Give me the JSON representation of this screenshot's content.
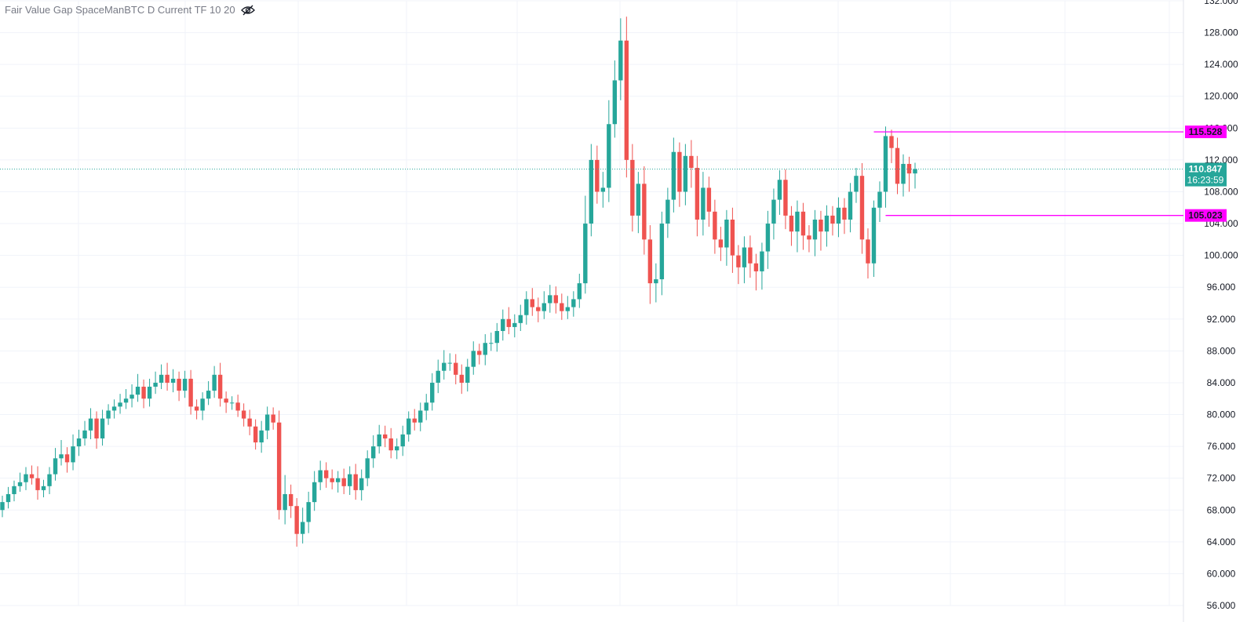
{
  "indicator": {
    "title": "Fair Value Gap SpaceManBTC D Current TF 10 20",
    "visibility_icon": "eye-off-icon"
  },
  "colors": {
    "up": "#26a69a",
    "down": "#ef5350",
    "level_line": "#ff00ff",
    "level_badge_bg": "#ff00ff",
    "price_badge_bg": "#26a69a",
    "grid": "#f0f3fa",
    "axis_text": "#131722"
  },
  "chart_data": {
    "type": "candlestick",
    "symbol_timeframe": "D",
    "ylim": [
      56000,
      132000
    ],
    "y_ticks": [
      "132.000",
      "128.000",
      "124.000",
      "120.000",
      "116.000",
      "112.000",
      "108.000",
      "104.000",
      "100.000",
      "96.000",
      "92.000",
      "88.000",
      "84.000",
      "80.000",
      "76.000",
      "72.000",
      "68.000",
      "64.000",
      "60.000",
      "56.000"
    ],
    "y_tick_values": [
      132000,
      128000,
      124000,
      120000,
      116000,
      112000,
      108000,
      104000,
      100000,
      96000,
      92000,
      88000,
      84000,
      80000,
      76000,
      72000,
      68000,
      64000,
      60000,
      56000
    ],
    "current_price": {
      "label": "110.847",
      "value": 110847,
      "countdown": "16:23:59"
    },
    "levels": [
      {
        "label": "115.528",
        "value": 115528,
        "start_index": 148
      },
      {
        "label": "105.023",
        "value": 105023,
        "start_index": 150
      }
    ],
    "closes": [
      69000,
      70000,
      71000,
      71500,
      72500,
      72000,
      70500,
      71000,
      72500,
      74500,
      75000,
      74000,
      76000,
      77000,
      78000,
      79500,
      77000,
      79500,
      80500,
      81000,
      81500,
      82000,
      82500,
      83500,
      82000,
      83500,
      84000,
      85000,
      84000,
      84500,
      83000,
      84500,
      81000,
      80500,
      82000,
      83000,
      85000,
      82000,
      81500,
      81500,
      80500,
      79500,
      78500,
      76500,
      78000,
      80000,
      79000,
      68000,
      70000,
      68500,
      65000,
      66500,
      69000,
      71500,
      73000,
      72000,
      71500,
      72000,
      71000,
      72500,
      70500,
      72000,
      74500,
      76000,
      77500,
      77000,
      75500,
      76000,
      77500,
      79500,
      79000,
      80500,
      81500,
      84000,
      85500,
      86500,
      86500,
      85000,
      84000,
      86000,
      88000,
      87500,
      89000,
      89000,
      90500,
      92000,
      91000,
      91500,
      92500,
      94500,
      93500,
      93000,
      94000,
      95000,
      94000,
      93000,
      93500,
      94500,
      96500,
      104000,
      112000,
      108000,
      108500,
      116500,
      122000,
      127000,
      112000,
      105000,
      109000,
      102000,
      96500,
      97000,
      104000,
      107000,
      113000,
      108000,
      112500,
      111000,
      104500,
      108500,
      105500,
      102000,
      101000,
      104500,
      100000,
      98500,
      101000,
      99000,
      98000,
      100500,
      104000,
      107000,
      109500,
      105000,
      103000,
      105500,
      102500,
      102000,
      104500,
      103000,
      105000,
      104000,
      106000,
      104500,
      108000,
      110000,
      102000,
      99000,
      106000,
      108000,
      115000,
      113500,
      109000,
      111500,
      110300,
      110847
    ],
    "opens": [
      68000,
      69000,
      70000,
      71000,
      71500,
      72500,
      72000,
      70500,
      71000,
      72500,
      74500,
      75000,
      74000,
      76000,
      77000,
      78000,
      79500,
      77000,
      79500,
      80500,
      81000,
      81500,
      82000,
      82500,
      83500,
      82000,
      83500,
      84000,
      85000,
      84000,
      84500,
      83000,
      84500,
      81000,
      80500,
      82000,
      83000,
      85000,
      82000,
      81500,
      81500,
      80500,
      79500,
      78500,
      76500,
      78000,
      80000,
      79000,
      68000,
      70000,
      68500,
      65000,
      66500,
      69000,
      71500,
      73000,
      72000,
      71500,
      72000,
      71000,
      72500,
      70500,
      72000,
      74500,
      76000,
      77500,
      77000,
      75500,
      76000,
      77500,
      79500,
      79000,
      80500,
      81500,
      84000,
      85500,
      86500,
      86500,
      85000,
      84000,
      86000,
      88000,
      87500,
      89000,
      89000,
      90500,
      92000,
      91000,
      91500,
      92500,
      94500,
      93500,
      93000,
      94000,
      95000,
      94000,
      93000,
      93500,
      94500,
      96500,
      104000,
      112000,
      108000,
      108500,
      116500,
      122000,
      127000,
      112000,
      105000,
      109000,
      102000,
      96500,
      97000,
      104000,
      107000,
      113000,
      108000,
      112500,
      111000,
      104500,
      108500,
      105500,
      102000,
      101000,
      104500,
      100000,
      98500,
      101000,
      99000,
      98000,
      100500,
      104000,
      107000,
      109500,
      105000,
      103000,
      105500,
      102500,
      102000,
      104500,
      103000,
      105000,
      104000,
      106000,
      104500,
      108000,
      110000,
      102000,
      99000,
      106000,
      108000,
      115000,
      113500,
      109000,
      111500,
      110300
    ],
    "highs_extra": [
      800,
      900,
      700,
      1200,
      900,
      1100,
      1500,
      800,
      900,
      1300,
      1800,
      900,
      1500,
      1100,
      1200,
      1300,
      900,
      1100,
      800,
      900,
      1100,
      1200,
      1300,
      1600,
      900,
      1000,
      1400,
      1300,
      1500,
      1200,
      900,
      1000,
      1100,
      900,
      800,
      1200,
      1100,
      1500,
      900,
      800,
      1000,
      900,
      1100,
      900,
      1200,
      1000,
      900,
      1500,
      2400,
      1200,
      1000,
      1800,
      1300,
      1400,
      1200,
      1000,
      1100,
      900,
      1200,
      1000,
      1300,
      1100,
      1000,
      1400,
      1200,
      1100,
      1300,
      1000,
      1100,
      900,
      1200,
      1000,
      1100,
      1200,
      1400,
      1600,
      1200,
      1100,
      1300,
      1000,
      1200,
      900,
      1100,
      1300,
      1000,
      1200,
      1500,
      1100,
      1300,
      1000,
      1400,
      1200,
      1500,
      1300,
      1100,
      1200,
      1400,
      1000,
      1200,
      3500,
      2000,
      1800,
      2000,
      3000,
      2500,
      2800,
      3000,
      2000,
      1500,
      2200,
      1800,
      2000,
      1500,
      1500,
      1800,
      1200,
      1500,
      2000,
      1500,
      2000,
      1400,
      1500,
      1600,
      1200,
      1500,
      1300,
      1400,
      1500,
      1200,
      1100,
      1600,
      1400,
      1200,
      1300,
      1200,
      1400,
      1100,
      1300,
      1200,
      1100,
      1300,
      1200,
      1300,
      1200,
      1100,
      1000,
      1600,
      1400,
      900,
      1300,
      1200,
      800,
      1300,
      1200,
      900,
      800
    ],
    "lows_extra": [
      900,
      800,
      900,
      700,
      1000,
      800,
      1200,
      900,
      1000,
      800,
      900,
      1300,
      1000,
      1200,
      900,
      1100,
      1300,
      900,
      800,
      1000,
      900,
      800,
      1100,
      900,
      1200,
      1000,
      900,
      800,
      1000,
      1200,
      1300,
      900,
      1000,
      1100,
      1200,
      800,
      900,
      1000,
      1300,
      900,
      800,
      1000,
      1100,
      900,
      1300,
      1100,
      900,
      1200,
      1800,
      1500,
      1600,
      1200,
      1400,
      1100,
      1000,
      1200,
      900,
      1300,
      1000,
      1100,
      1200,
      1300,
      1000,
      1200,
      900,
      1100,
      1000,
      1100,
      1200,
      900,
      1000,
      1100,
      1200,
      1000,
      1300,
      1100,
      1000,
      1200,
      1400,
      1100,
      1000,
      1200,
      1300,
      1000,
      1100,
      1200,
      900,
      1300,
      1000,
      1200,
      1100,
      1400,
      1000,
      1200,
      1300,
      1100,
      1000,
      1200,
      1100,
      1300,
      1600,
      1500,
      2000,
      1800,
      1700,
      2500,
      2200,
      2000,
      2200,
      1900,
      2600,
      2400,
      2000,
      1800,
      1600,
      1900,
      1700,
      2500,
      2100,
      2000,
      1900,
      1800,
      1700,
      2300,
      2200,
      2100,
      2000,
      1800,
      2400,
      2300,
      2200,
      2000,
      1900,
      1700,
      1800,
      2600,
      1800,
      1600,
      2100,
      2400,
      1900,
      1500,
      1700,
      1800,
      1600,
      1400,
      1800,
      1900,
      1700,
      1800,
      2000,
      1900,
      1300,
      1600,
      2300,
      1900,
      1200,
      1100
    ]
  }
}
